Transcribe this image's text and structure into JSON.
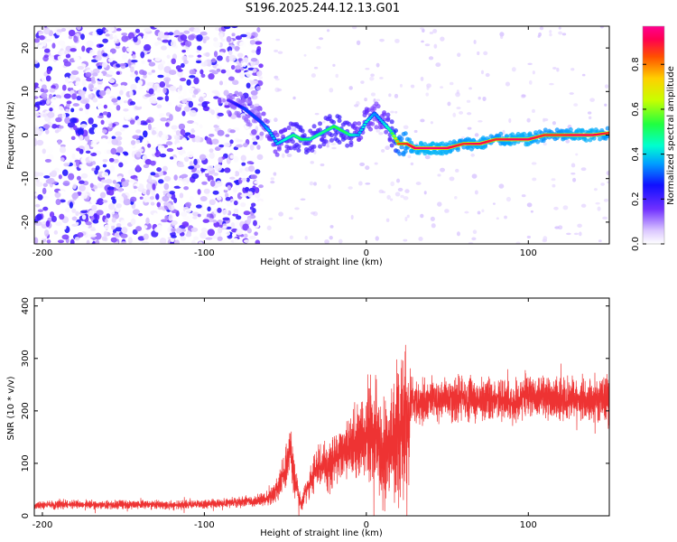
{
  "title": "S196.2025.244.12.13.G01",
  "chart_data": [
    {
      "type": "heatmap",
      "xlabel": "Height of straight line (km)",
      "ylabel": "Frequency (Hz)",
      "xlim": [
        -205,
        150
      ],
      "ylim": [
        -25,
        25
      ],
      "xticks": [
        -200,
        -100,
        0,
        100
      ],
      "yticks": [
        -20,
        -10,
        0,
        10,
        20
      ],
      "colorbar": {
        "label": "Normalized spectral amplitude",
        "ticks": [
          0.0,
          0.2,
          0.4,
          0.6,
          0.8
        ],
        "range": [
          0,
          0.97
        ]
      },
      "ridge": {
        "x": [
          -85,
          -75,
          -65,
          -60,
          -55,
          -50,
          -45,
          -40,
          -35,
          -30,
          -25,
          -20,
          -15,
          -10,
          -5,
          0,
          5,
          10,
          15,
          20,
          25,
          30,
          40,
          50,
          60,
          70,
          80,
          90,
          100,
          110,
          120,
          130,
          140,
          150
        ],
        "freq": [
          8,
          6,
          3,
          1,
          -2,
          -1,
          0,
          -1,
          -1,
          0,
          1,
          2,
          1,
          0,
          0,
          3,
          5,
          3,
          1,
          -2,
          -2,
          -3,
          -3,
          -3,
          -2,
          -2,
          -1,
          -1,
          -1,
          0,
          0,
          0,
          0,
          0.5
        ],
        "amplitude": [
          0.2,
          0.3,
          0.3,
          0.4,
          0.4,
          0.45,
          0.5,
          0.55,
          0.5,
          0.5,
          0.5,
          0.55,
          0.55,
          0.5,
          0.4,
          0.45,
          0.35,
          0.4,
          0.5,
          0.85,
          0.9,
          0.95,
          0.97,
          0.95,
          0.9,
          0.95,
          0.9,
          0.95,
          0.95,
          0.9,
          0.9,
          0.95,
          0.95,
          0.9
        ]
      },
      "noise_region": {
        "x_range": [
          -205,
          -65
        ],
        "freq_range": [
          -25,
          25
        ]
      }
    },
    {
      "type": "line",
      "xlabel": "Height of straight line (km)",
      "ylabel": "SNR (10 * v/v)",
      "xlim": [
        -205,
        150
      ],
      "ylim": [
        0,
        415
      ],
      "xticks": [
        -200,
        -100,
        0,
        100
      ],
      "yticks": [
        0,
        100,
        200,
        300,
        400
      ],
      "color": "#ee3333",
      "series": [
        {
          "name": "SNR",
          "x": [
            -205,
            -180,
            -160,
            -140,
            -120,
            -100,
            -80,
            -70,
            -60,
            -55,
            -50,
            -47,
            -45,
            -42,
            -40,
            -38,
            -35,
            -30,
            -25,
            -20,
            -15,
            -10,
            -5,
            0,
            5,
            10,
            15,
            18,
            20,
            22,
            24,
            26,
            28,
            30,
            35,
            40,
            50,
            60,
            70,
            80,
            90,
            100,
            110,
            120,
            130,
            140,
            150
          ],
          "y": [
            20,
            22,
            20,
            22,
            20,
            22,
            25,
            28,
            35,
            50,
            90,
            130,
            80,
            40,
            20,
            45,
            60,
            100,
            95,
            110,
            120,
            130,
            140,
            150,
            160,
            120,
            140,
            150,
            170,
            140,
            200,
            160,
            230,
            210,
            215,
            225,
            220,
            225,
            220,
            225,
            220,
            225,
            225,
            220,
            225,
            220,
            220
          ],
          "spread": [
            12,
            12,
            12,
            12,
            12,
            12,
            14,
            16,
            20,
            30,
            50,
            60,
            50,
            30,
            15,
            30,
            40,
            60,
            70,
            80,
            80,
            90,
            110,
            130,
            140,
            150,
            160,
            170,
            220,
            230,
            200,
            150,
            80,
            70,
            65,
            60,
            60,
            60,
            60,
            60,
            60,
            60,
            60,
            60,
            60,
            60,
            60
          ]
        }
      ]
    }
  ]
}
